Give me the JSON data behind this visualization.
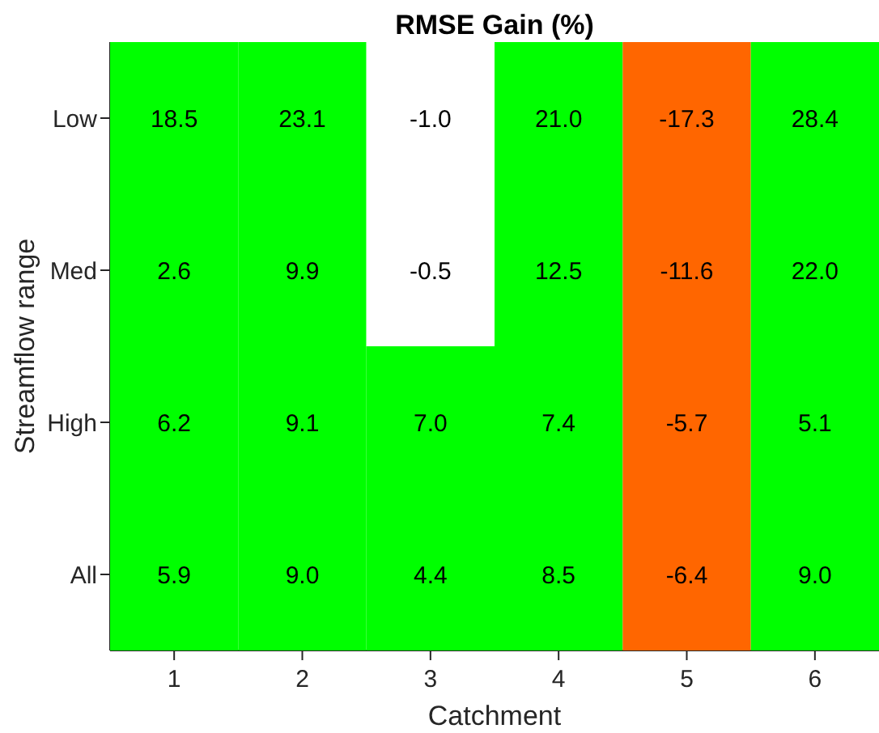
{
  "chart_data": {
    "type": "heatmap",
    "title": "RMSE Gain (%)",
    "xlabel": "Catchment",
    "ylabel": "Streamflow range",
    "categories": [
      "1",
      "2",
      "3",
      "4",
      "5",
      "6"
    ],
    "y_categories": [
      "Low",
      "Med",
      "High",
      "All"
    ],
    "cells": [
      [
        18.5,
        23.1,
        -1.0,
        21.0,
        -17.3,
        28.4
      ],
      [
        2.6,
        9.9,
        -0.5,
        12.5,
        -11.6,
        22.0
      ],
      [
        6.2,
        9.1,
        7.0,
        7.4,
        -5.7,
        5.1
      ],
      [
        5.9,
        9.0,
        4.4,
        8.5,
        -6.4,
        9.0
      ]
    ],
    "cell_labels": [
      [
        "18.5",
        "23.1",
        "-1.0",
        "21.0",
        "-17.3",
        "28.4"
      ],
      [
        "2.6",
        "9.9",
        "-0.5",
        "12.5",
        "-11.6",
        "22.0"
      ],
      [
        "6.2",
        "9.1",
        "7.0",
        "7.4",
        "-5.7",
        "5.1"
      ],
      [
        "5.9",
        "9.0",
        "4.4",
        "8.5",
        "-6.4",
        "9.0"
      ]
    ],
    "colors": [
      [
        "#00ff00",
        "#00ff00",
        "#ffffff",
        "#00ff00",
        "#ff6600",
        "#00ff00"
      ],
      [
        "#00ff00",
        "#00ff00",
        "#ffffff",
        "#00ff00",
        "#ff6600",
        "#00ff00"
      ],
      [
        "#00ff00",
        "#00ff00",
        "#00ff00",
        "#00ff00",
        "#ff6600",
        "#00ff00"
      ],
      [
        "#00ff00",
        "#00ff00",
        "#00ff00",
        "#00ff00",
        "#ff6600",
        "#00ff00"
      ]
    ]
  }
}
